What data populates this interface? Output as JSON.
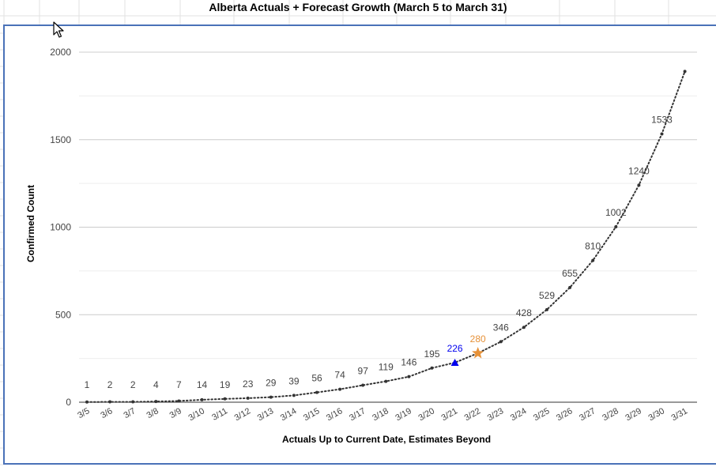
{
  "chart_data": {
    "type": "line",
    "title": "Alberta Actuals + Forecast Growth (March 5 to March 31)",
    "xlabel": "Actuals Up to Current Date, Estimates Beyond",
    "ylabel": "Confirmed Count",
    "ylim": [
      0,
      2000
    ],
    "yticks": [
      0,
      500,
      1000,
      1500,
      2000
    ],
    "grid": true,
    "legend": "none",
    "categories": [
      "3/5",
      "3/6",
      "3/7",
      "3/8",
      "3/9",
      "3/10",
      "3/11",
      "3/12",
      "3/13",
      "3/14",
      "3/15",
      "3/16",
      "3/17",
      "3/18",
      "3/19",
      "3/20",
      "3/21",
      "3/22",
      "3/23",
      "3/24",
      "3/25",
      "3/26",
      "3/27",
      "3/28",
      "3/29",
      "3/30",
      "3/31"
    ],
    "values": [
      1,
      2,
      2,
      4,
      7,
      14,
      19,
      23,
      29,
      39,
      56,
      74,
      97,
      119,
      146,
      195,
      226,
      280,
      346,
      428,
      529,
      655,
      810,
      1002,
      1240,
      1533,
      1890
    ],
    "labels": [
      "1",
      "2",
      "2",
      "4",
      "7",
      "14",
      "19",
      "23",
      "29",
      "39",
      "56",
      "74",
      "97",
      "119",
      "146",
      "195",
      "226",
      "280",
      "346",
      "428",
      "529",
      "655",
      "810",
      "1002",
      "1240",
      "1533",
      ""
    ],
    "highlights": [
      {
        "category": "3/21",
        "marker": "triangle",
        "color": "#0000ee"
      },
      {
        "category": "3/22",
        "marker": "star",
        "color": "#e69138"
      }
    ],
    "colors": {
      "line": "#333333",
      "point": "#333333",
      "label": "#444444",
      "grid": "#cccccc",
      "frame": "#4a72b8"
    }
  }
}
